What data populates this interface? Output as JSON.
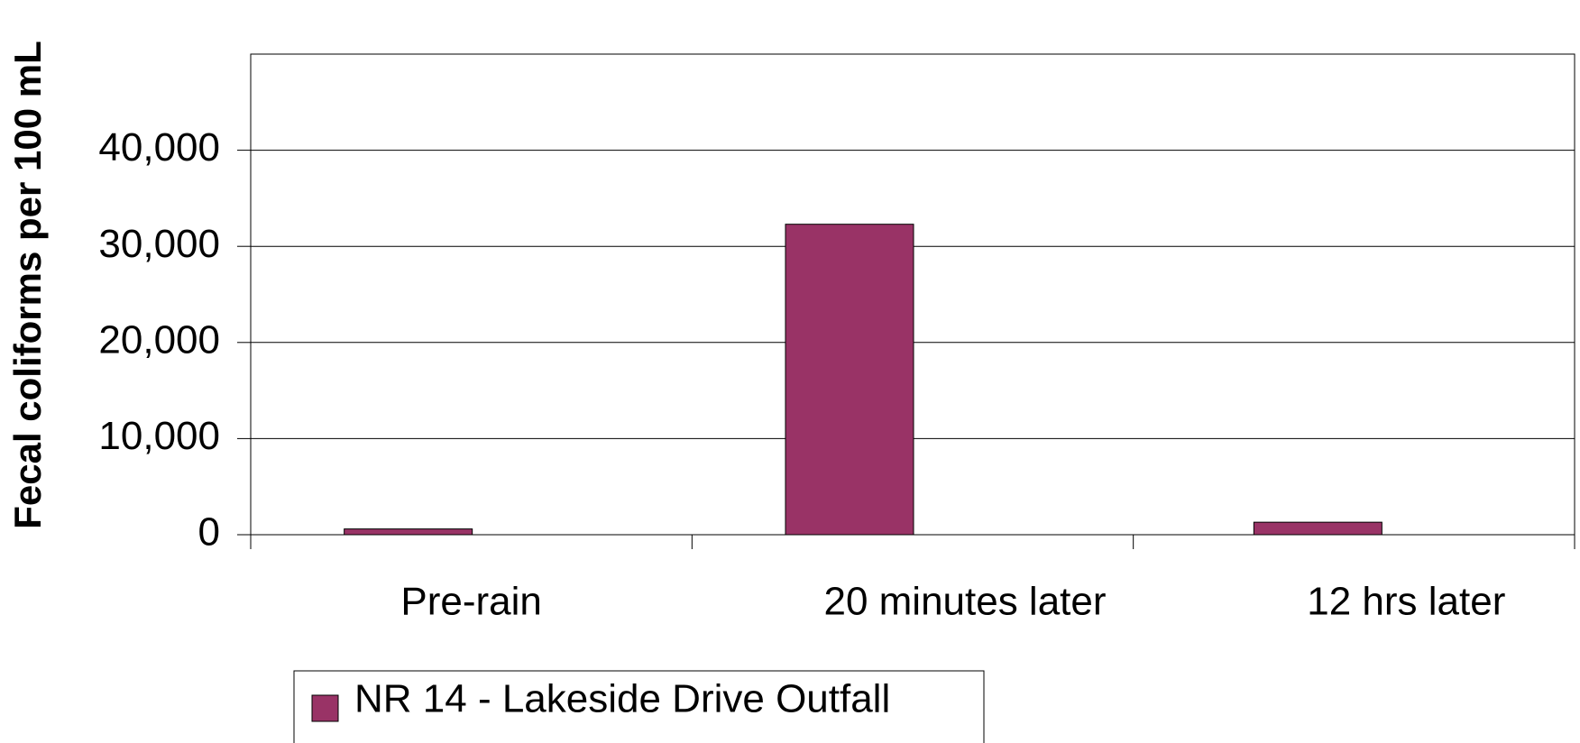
{
  "chart_data": {
    "type": "bar",
    "y_label": "Fecal coliforms per 100 mL",
    "categories": [
      "Pre-rain",
      "20 minutes later",
      "12 hrs later"
    ],
    "series": [
      {
        "name": "NR 14 - Lakeside Drive Outfall",
        "color": "#993366",
        "values": [
          600,
          32300,
          1300
        ]
      }
    ],
    "ylim": [
      0,
      50000
    ],
    "yticks": [
      0,
      {
        "value": 10000,
        "label": "10,000"
      },
      {
        "value": 20000,
        "label": "20,000"
      },
      {
        "value": 30000,
        "label": "30,000"
      },
      {
        "value": 40000,
        "label": "40,000"
      }
    ],
    "grid": true
  }
}
